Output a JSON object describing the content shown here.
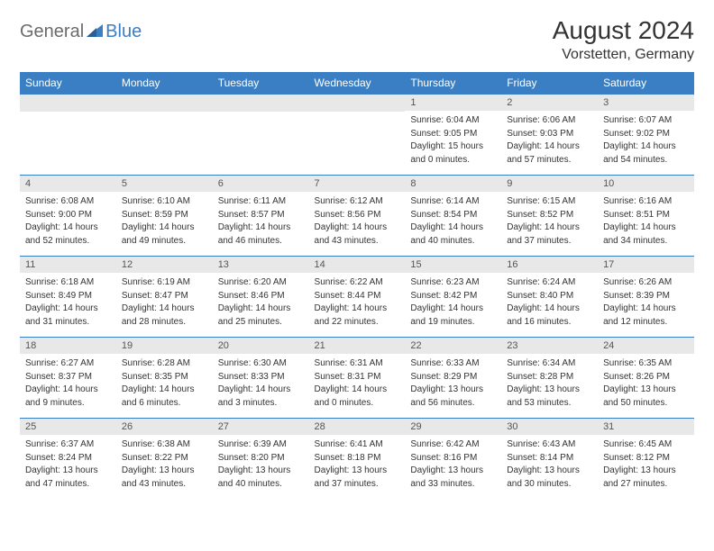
{
  "logo": {
    "text1": "General",
    "text2": "Blue",
    "accent_color": "#3a7fc4",
    "text1_color": "#6b6b6b"
  },
  "title": "August 2024",
  "location": "Vorstetten, Germany",
  "header_bg": "#3a7fc4",
  "header_fg": "#ffffff",
  "daynum_bg": "#e8e8e8",
  "daynum_fg": "#555555",
  "cell_border": "#3a7fc4",
  "text_color": "#333333",
  "day_headers": [
    "Sunday",
    "Monday",
    "Tuesday",
    "Wednesday",
    "Thursday",
    "Friday",
    "Saturday"
  ],
  "weeks": [
    [
      null,
      null,
      null,
      null,
      {
        "n": "1",
        "sr": "Sunrise: 6:04 AM",
        "ss": "Sunset: 9:05 PM",
        "dl": "Daylight: 15 hours and 0 minutes."
      },
      {
        "n": "2",
        "sr": "Sunrise: 6:06 AM",
        "ss": "Sunset: 9:03 PM",
        "dl": "Daylight: 14 hours and 57 minutes."
      },
      {
        "n": "3",
        "sr": "Sunrise: 6:07 AM",
        "ss": "Sunset: 9:02 PM",
        "dl": "Daylight: 14 hours and 54 minutes."
      }
    ],
    [
      {
        "n": "4",
        "sr": "Sunrise: 6:08 AM",
        "ss": "Sunset: 9:00 PM",
        "dl": "Daylight: 14 hours and 52 minutes."
      },
      {
        "n": "5",
        "sr": "Sunrise: 6:10 AM",
        "ss": "Sunset: 8:59 PM",
        "dl": "Daylight: 14 hours and 49 minutes."
      },
      {
        "n": "6",
        "sr": "Sunrise: 6:11 AM",
        "ss": "Sunset: 8:57 PM",
        "dl": "Daylight: 14 hours and 46 minutes."
      },
      {
        "n": "7",
        "sr": "Sunrise: 6:12 AM",
        "ss": "Sunset: 8:56 PM",
        "dl": "Daylight: 14 hours and 43 minutes."
      },
      {
        "n": "8",
        "sr": "Sunrise: 6:14 AM",
        "ss": "Sunset: 8:54 PM",
        "dl": "Daylight: 14 hours and 40 minutes."
      },
      {
        "n": "9",
        "sr": "Sunrise: 6:15 AM",
        "ss": "Sunset: 8:52 PM",
        "dl": "Daylight: 14 hours and 37 minutes."
      },
      {
        "n": "10",
        "sr": "Sunrise: 6:16 AM",
        "ss": "Sunset: 8:51 PM",
        "dl": "Daylight: 14 hours and 34 minutes."
      }
    ],
    [
      {
        "n": "11",
        "sr": "Sunrise: 6:18 AM",
        "ss": "Sunset: 8:49 PM",
        "dl": "Daylight: 14 hours and 31 minutes."
      },
      {
        "n": "12",
        "sr": "Sunrise: 6:19 AM",
        "ss": "Sunset: 8:47 PM",
        "dl": "Daylight: 14 hours and 28 minutes."
      },
      {
        "n": "13",
        "sr": "Sunrise: 6:20 AM",
        "ss": "Sunset: 8:46 PM",
        "dl": "Daylight: 14 hours and 25 minutes."
      },
      {
        "n": "14",
        "sr": "Sunrise: 6:22 AM",
        "ss": "Sunset: 8:44 PM",
        "dl": "Daylight: 14 hours and 22 minutes."
      },
      {
        "n": "15",
        "sr": "Sunrise: 6:23 AM",
        "ss": "Sunset: 8:42 PM",
        "dl": "Daylight: 14 hours and 19 minutes."
      },
      {
        "n": "16",
        "sr": "Sunrise: 6:24 AM",
        "ss": "Sunset: 8:40 PM",
        "dl": "Daylight: 14 hours and 16 minutes."
      },
      {
        "n": "17",
        "sr": "Sunrise: 6:26 AM",
        "ss": "Sunset: 8:39 PM",
        "dl": "Daylight: 14 hours and 12 minutes."
      }
    ],
    [
      {
        "n": "18",
        "sr": "Sunrise: 6:27 AM",
        "ss": "Sunset: 8:37 PM",
        "dl": "Daylight: 14 hours and 9 minutes."
      },
      {
        "n": "19",
        "sr": "Sunrise: 6:28 AM",
        "ss": "Sunset: 8:35 PM",
        "dl": "Daylight: 14 hours and 6 minutes."
      },
      {
        "n": "20",
        "sr": "Sunrise: 6:30 AM",
        "ss": "Sunset: 8:33 PM",
        "dl": "Daylight: 14 hours and 3 minutes."
      },
      {
        "n": "21",
        "sr": "Sunrise: 6:31 AM",
        "ss": "Sunset: 8:31 PM",
        "dl": "Daylight: 14 hours and 0 minutes."
      },
      {
        "n": "22",
        "sr": "Sunrise: 6:33 AM",
        "ss": "Sunset: 8:29 PM",
        "dl": "Daylight: 13 hours and 56 minutes."
      },
      {
        "n": "23",
        "sr": "Sunrise: 6:34 AM",
        "ss": "Sunset: 8:28 PM",
        "dl": "Daylight: 13 hours and 53 minutes."
      },
      {
        "n": "24",
        "sr": "Sunrise: 6:35 AM",
        "ss": "Sunset: 8:26 PM",
        "dl": "Daylight: 13 hours and 50 minutes."
      }
    ],
    [
      {
        "n": "25",
        "sr": "Sunrise: 6:37 AM",
        "ss": "Sunset: 8:24 PM",
        "dl": "Daylight: 13 hours and 47 minutes."
      },
      {
        "n": "26",
        "sr": "Sunrise: 6:38 AM",
        "ss": "Sunset: 8:22 PM",
        "dl": "Daylight: 13 hours and 43 minutes."
      },
      {
        "n": "27",
        "sr": "Sunrise: 6:39 AM",
        "ss": "Sunset: 8:20 PM",
        "dl": "Daylight: 13 hours and 40 minutes."
      },
      {
        "n": "28",
        "sr": "Sunrise: 6:41 AM",
        "ss": "Sunset: 8:18 PM",
        "dl": "Daylight: 13 hours and 37 minutes."
      },
      {
        "n": "29",
        "sr": "Sunrise: 6:42 AM",
        "ss": "Sunset: 8:16 PM",
        "dl": "Daylight: 13 hours and 33 minutes."
      },
      {
        "n": "30",
        "sr": "Sunrise: 6:43 AM",
        "ss": "Sunset: 8:14 PM",
        "dl": "Daylight: 13 hours and 30 minutes."
      },
      {
        "n": "31",
        "sr": "Sunrise: 6:45 AM",
        "ss": "Sunset: 8:12 PM",
        "dl": "Daylight: 13 hours and 27 minutes."
      }
    ]
  ]
}
